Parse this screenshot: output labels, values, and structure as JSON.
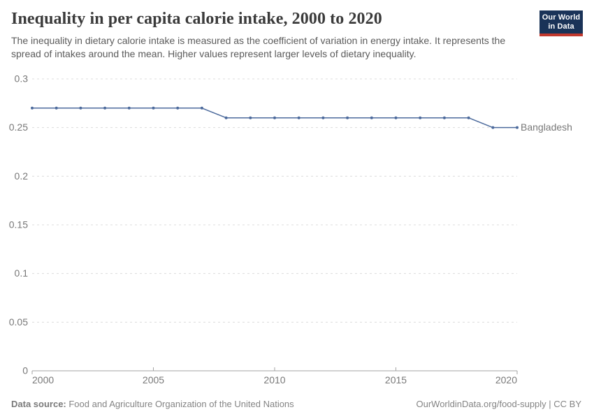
{
  "header": {
    "title": "Inequality in per capita calorie intake, 2000 to 2020",
    "subtitle": "The inequality in dietary calorie intake is measured as the coefficient of variation in energy intake. It represents the spread of intakes around the mean. Higher values represent larger levels of dietary inequality.",
    "logo": {
      "line1": "Our World",
      "line2": "in Data"
    }
  },
  "chart_data": {
    "type": "line",
    "title": "Inequality in per capita calorie intake, 2000 to 2020",
    "xlabel": "",
    "ylabel": "",
    "xlim": [
      2000,
      2020
    ],
    "ylim": [
      0,
      0.3
    ],
    "x_ticks": [
      2000,
      2005,
      2010,
      2015,
      2020
    ],
    "y_ticks": [
      0,
      0.05,
      0.1,
      0.15,
      0.2,
      0.25,
      0.3
    ],
    "grid": "horizontal-dashed",
    "legend_position": "end-of-line",
    "series": [
      {
        "name": "Bangladesh",
        "color": "#4c6a9c",
        "x": [
          2000,
          2001,
          2002,
          2003,
          2004,
          2005,
          2006,
          2007,
          2008,
          2009,
          2010,
          2011,
          2012,
          2013,
          2014,
          2015,
          2016,
          2017,
          2018,
          2019,
          2020
        ],
        "values": [
          0.27,
          0.27,
          0.27,
          0.27,
          0.27,
          0.27,
          0.27,
          0.27,
          0.26,
          0.26,
          0.26,
          0.26,
          0.26,
          0.26,
          0.26,
          0.26,
          0.26,
          0.26,
          0.26,
          0.25,
          0.25
        ]
      }
    ]
  },
  "footer": {
    "datasource_label": "Data source:",
    "datasource_value": " Food and Agriculture Organization of the United Nations",
    "attribution": "OurWorldinData.org/food-supply | CC BY"
  },
  "colors": {
    "line": "#4c6a9c",
    "grid": "#dcdcdc",
    "axis": "#a3a3a3",
    "tick_label": "#787878",
    "logo_bg": "#1a3358",
    "logo_accent": "#c2392e"
  }
}
